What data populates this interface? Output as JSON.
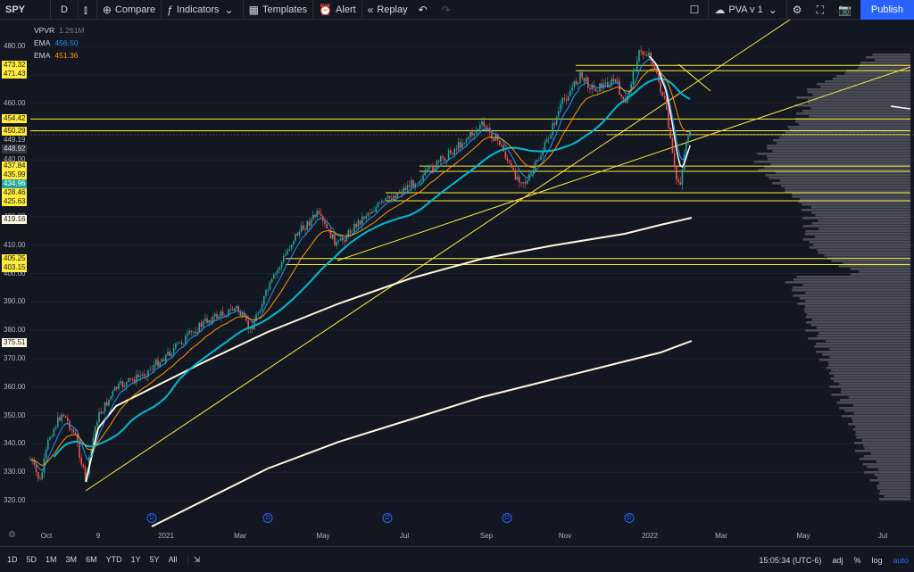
{
  "toolbar": {
    "symbol": "SPY",
    "interval": "D",
    "compare": "Compare",
    "indicators": "Indicators",
    "templates": "Templates",
    "alert": "Alert",
    "replay": "Replay",
    "layout": "PVA v 1",
    "publish": "Publish"
  },
  "legend": {
    "vpvr_name": "VPVR",
    "vpvr_value": "1.261M",
    "ema1_name": "EMA",
    "ema1_value": "456.50",
    "ema2_name": "EMA",
    "ema2_value": "451.36"
  },
  "price_axis": {
    "ticks": [
      "480.00",
      "470.00",
      "460.00",
      "450.00",
      "440.00",
      "430.00",
      "420.00",
      "410.00",
      "400.00",
      "390.00",
      "380.00",
      "370.00",
      "360.00",
      "350.00",
      "340.00",
      "330.00",
      "320.00"
    ],
    "badges": [
      {
        "text": "473.32",
        "style": "yel"
      },
      {
        "text": "471.43",
        "style": "yel"
      },
      {
        "text": "454.42",
        "style": "yel"
      },
      {
        "text": "450.29",
        "style": "yel"
      },
      {
        "text": "449.19",
        "style": "plain"
      },
      {
        "text": "448.92",
        "style": "dark"
      },
      {
        "text": "437.84",
        "style": "yel"
      },
      {
        "text": "435.99",
        "style": "yel"
      },
      {
        "text": "434.96",
        "style": "cyan"
      },
      {
        "text": "428.46",
        "style": "yel"
      },
      {
        "text": "425.63",
        "style": "yel"
      },
      {
        "text": "419.16",
        "style": "white"
      },
      {
        "text": "405.25",
        "style": "yel"
      },
      {
        "text": "403.15",
        "style": "yel"
      },
      {
        "text": "375.51",
        "style": "white"
      }
    ]
  },
  "time_axis": [
    "Oct",
    "9",
    "2021",
    "Mar",
    "May",
    "Jul",
    "Sep",
    "Nov",
    "2022",
    "Mar",
    "May",
    "Jul"
  ],
  "dividend_mark": "D",
  "bottombar": {
    "ranges": [
      "1D",
      "5D",
      "1M",
      "3M",
      "6M",
      "YTD",
      "1Y",
      "5Y",
      "All"
    ],
    "clock": "15:05:34 (UTC-6)",
    "adj": "adj",
    "pct": "%",
    "log": "log",
    "auto": "auto"
  },
  "colors": {
    "bg": "#131722",
    "up": "#26a69a",
    "down": "#ef5350",
    "ema_fast": "#2196f3",
    "ema_slow": "#ff9800",
    "sma_long": "#fff8dc",
    "levels": "#ffeb3b",
    "vpvr": "#5d606b"
  },
  "chart_data": {
    "type": "line",
    "symbol": "SPY",
    "interval": "D",
    "approx_close": {
      "x": [
        "2020-10-01",
        "2020-11-09",
        "2021-01-04",
        "2021-03-01",
        "2021-05-03",
        "2021-07-01",
        "2021-09-01",
        "2021-11-01",
        "2022-01-03",
        "2022-01-27"
      ],
      "y": [
        334,
        355,
        372,
        381,
        416,
        430,
        452,
        460,
        476,
        440
      ]
    },
    "horizontal_levels": [
      473.32,
      471.43,
      454.42,
      450.29,
      448.92,
      437.84,
      435.99,
      428.46,
      425.63,
      405.25,
      403.15
    ],
    "ylim": [
      315,
      485
    ]
  }
}
